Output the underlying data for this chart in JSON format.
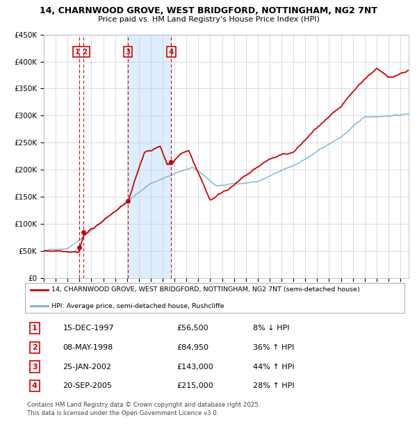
{
  "title1": "14, CHARNWOOD GROVE, WEST BRIDGFORD, NOTTINGHAM, NG2 7NT",
  "title2": "Price paid vs. HM Land Registry's House Price Index (HPI)",
  "legend_red": "14, CHARNWOOD GROVE, WEST BRIDGFORD, NOTTINGHAM, NG2 7NT (semi-detached house)",
  "legend_blue": "HPI: Average price, semi-detached house, Rushcliffe",
  "sales": [
    {
      "num": 1,
      "date": "15-DEC-1997",
      "price": "£56,500",
      "pct": "8%",
      "dir": "↓"
    },
    {
      "num": 2,
      "date": "08-MAY-1998",
      "price": "£84,950",
      "pct": "36%",
      "dir": "↑"
    },
    {
      "num": 3,
      "date": "25-JAN-2002",
      "price": "£143,000",
      "pct": "44%",
      "dir": "↑"
    },
    {
      "num": 4,
      "date": "20-SEP-2005",
      "price": "£215,000",
      "pct": "28%",
      "dir": "↑"
    }
  ],
  "sale_dates_decimal": [
    1997.96,
    1998.36,
    2002.07,
    2005.72
  ],
  "sale_prices": [
    56500,
    84950,
    143000,
    215000
  ],
  "footnote1": "Contains HM Land Registry data © Crown copyright and database right 2025.",
  "footnote2": "This data is licensed under the Open Government Licence v3.0.",
  "red_color": "#cc0000",
  "blue_color": "#7bafd4",
  "shade_color": "#ddeeff",
  "grid_color": "#cccccc",
  "ylim": [
    0,
    450000
  ],
  "xlim_start": 1995.0,
  "xlim_end": 2025.7,
  "yticks": [
    0,
    50000,
    100000,
    150000,
    200000,
    250000,
    300000,
    350000,
    400000,
    450000
  ],
  "xticks": [
    1995,
    1996,
    1997,
    1998,
    1999,
    2000,
    2001,
    2002,
    2003,
    2004,
    2005,
    2006,
    2007,
    2008,
    2009,
    2010,
    2011,
    2012,
    2013,
    2014,
    2015,
    2016,
    2017,
    2018,
    2019,
    2020,
    2021,
    2022,
    2023,
    2024,
    2025
  ]
}
